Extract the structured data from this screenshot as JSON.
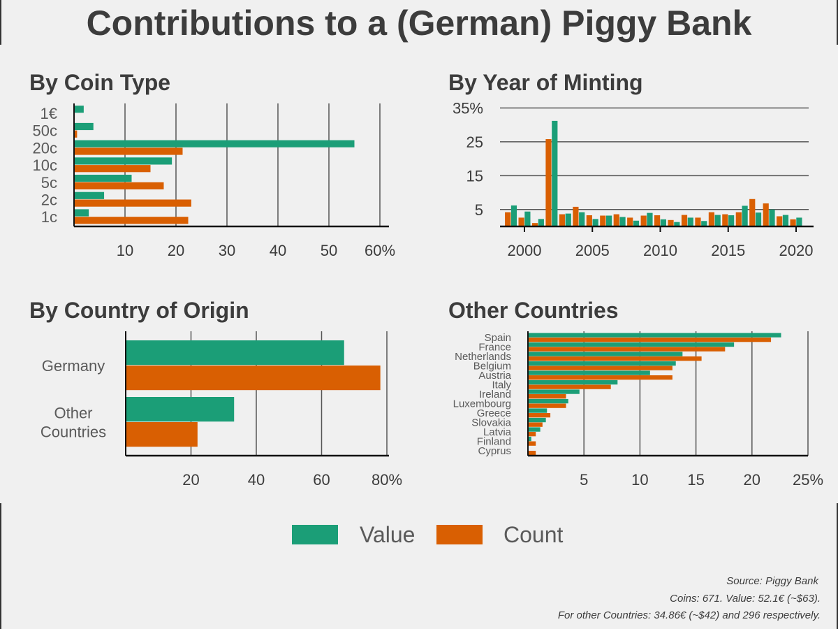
{
  "title": "Contributions to a (German) Piggy Bank",
  "colors": {
    "value": "#1b9e77",
    "count": "#d95f02",
    "background": "#f0f0f0",
    "grid": "#555555"
  },
  "legend": {
    "placement": "bottom-center",
    "items": [
      {
        "name": "Value",
        "color": "#1b9e77"
      },
      {
        "name": "Count",
        "color": "#d95f02"
      }
    ]
  },
  "notes": [
    "Source: Piggy Bank",
    "Coins: 671. Value: 52.1€ (~$63).",
    "For other Countries: 34.86€ (~$42) and 296 respectively."
  ],
  "chart_data": [
    {
      "type": "bar",
      "orientation": "horizontal",
      "title": "By Coin Type",
      "categories": [
        "1€",
        "50c",
        "20c",
        "10c",
        "5c",
        "2c",
        "1c"
      ],
      "series": [
        {
          "name": "Value",
          "values": [
            1.9,
            3.8,
            55.0,
            19.2,
            11.3,
            5.9,
            2.9
          ]
        },
        {
          "name": "Count",
          "values": [
            0.15,
            0.6,
            21.3,
            15.0,
            17.6,
            23.0,
            22.4
          ]
        }
      ],
      "xlim": [
        0,
        60
      ],
      "xticks": [
        10,
        20,
        30,
        40,
        50,
        60
      ],
      "xtick_labels": [
        "10",
        "20",
        "30",
        "40",
        "50",
        "60%"
      ],
      "grid": "vertical"
    },
    {
      "type": "bar",
      "orientation": "vertical",
      "title": "By Year of Minting",
      "x": [
        1999,
        2000,
        2001,
        2002,
        2003,
        2004,
        2005,
        2006,
        2007,
        2008,
        2009,
        2010,
        2011,
        2012,
        2013,
        2014,
        2015,
        2016,
        2017,
        2018,
        2019,
        2020
      ],
      "series": [
        {
          "name": "Count",
          "values": [
            4.2,
            2.6,
            1.0,
            25.8,
            3.6,
            5.8,
            3.3,
            3.2,
            3.6,
            2.6,
            3.2,
            3.3,
            1.9,
            3.4,
            2.6,
            4.2,
            3.6,
            4.2,
            8.1,
            6.8,
            3.0,
            2.1
          ]
        },
        {
          "name": "Value",
          "values": [
            6.2,
            4.4,
            2.2,
            31.2,
            3.8,
            4.2,
            2.2,
            3.2,
            2.8,
            1.7,
            4.0,
            2.1,
            1.3,
            2.6,
            1.6,
            3.4,
            3.3,
            6.1,
            4.1,
            5.0,
            3.4,
            2.6
          ]
        }
      ],
      "ylim": [
        0,
        35
      ],
      "yticks": [
        5,
        15,
        25,
        35
      ],
      "ytick_labels": [
        "5",
        "15",
        "25",
        "35%"
      ],
      "xticks": [
        2000,
        2005,
        2010,
        2015,
        2020
      ],
      "xtick_labels": [
        "2000",
        "2005",
        "2010",
        "2015",
        "2020"
      ],
      "grid": "horizontal"
    },
    {
      "type": "bar",
      "orientation": "horizontal",
      "title": "By Country of Origin",
      "categories": [
        "Germany",
        "Other Countries"
      ],
      "series": [
        {
          "name": "Value",
          "values": [
            66.9,
            33.2
          ]
        },
        {
          "name": "Count",
          "values": [
            78.0,
            22.0
          ]
        }
      ],
      "xlim": [
        0,
        80
      ],
      "xticks": [
        20,
        40,
        60,
        80
      ],
      "xtick_labels": [
        "20",
        "40",
        "60",
        "80%"
      ],
      "grid": "vertical"
    },
    {
      "type": "bar",
      "orientation": "horizontal",
      "title": "Other Countries",
      "categories": [
        "Spain",
        "France",
        "Netherlands",
        "Belgium",
        "Austria",
        "Italy",
        "Ireland",
        "Luxembourg",
        "Greece",
        "Slovakia",
        "Latvia",
        "Finland",
        "Cyprus"
      ],
      "series": [
        {
          "name": "Value",
          "values": [
            22.6,
            18.4,
            13.8,
            13.2,
            10.9,
            8.0,
            4.6,
            3.6,
            1.7,
            1.6,
            1.1,
            0.3,
            0.0
          ]
        },
        {
          "name": "Count",
          "values": [
            21.7,
            17.6,
            15.5,
            12.9,
            12.9,
            7.4,
            3.4,
            3.4,
            2.0,
            1.3,
            0.7,
            0.7,
            0.7
          ]
        }
      ],
      "xlim": [
        0,
        25
      ],
      "xticks": [
        5,
        10,
        15,
        20,
        25
      ],
      "xtick_labels": [
        "5",
        "10",
        "15",
        "20",
        "25%"
      ],
      "grid": "vertical"
    }
  ]
}
